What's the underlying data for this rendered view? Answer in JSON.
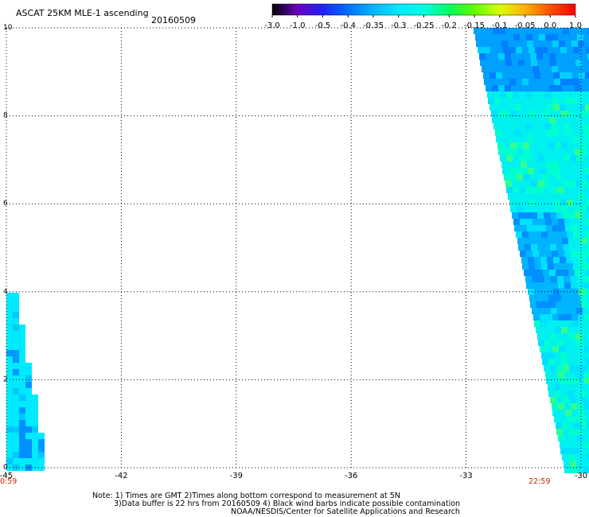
{
  "header": {
    "title": "ASCAT 25KM MLE-1 ascending",
    "date": "20160509"
  },
  "colorbar": {
    "labels": [
      "-3.0",
      "-1.0",
      "-0.5",
      "-0.4",
      "-0.35",
      "-0.3",
      "-0.25",
      "-0.2",
      "-0.15",
      "-0.1",
      "-0.05",
      "0.0",
      "1.0"
    ],
    "colors": [
      "#000000",
      "#6a00c0",
      "#2020ff",
      "#0070ff",
      "#00b4ff",
      "#00e8ff",
      "#00ffe0",
      "#00ff60",
      "#60ff00",
      "#d8ff00",
      "#ffb000",
      "#ff5000",
      "#ff0000"
    ]
  },
  "axes": {
    "x_ticks": [
      "-45",
      "-42",
      "-39",
      "-36",
      "-33",
      "-30"
    ],
    "y_ticks": [
      "0",
      "2",
      "4",
      "6",
      "8",
      "10"
    ],
    "time_start": "0:59",
    "time_end": "22:59"
  },
  "notes": {
    "line1": "Note: 1) Times are GMT 2)Times along bottom correspond to measurement at 5N",
    "line2": "3)Data buffer is 22 hrs from 20160509 4) Black wind barbs indicate possible contamination",
    "line3": "NOAA/NESDIS/Center for Satellite Applications and Research"
  }
}
